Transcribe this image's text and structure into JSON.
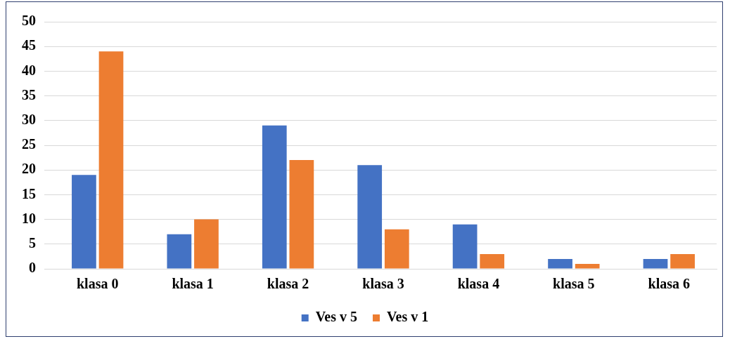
{
  "chart_data": {
    "type": "bar",
    "categories": [
      "klasa 0",
      "klasa 1",
      "klasa 2",
      "klasa 3",
      "klasa 4",
      "klasa 5",
      "klasa 6"
    ],
    "series": [
      {
        "name": "Ves v 5",
        "color": "#4472c4",
        "values": [
          19,
          7,
          29,
          21,
          9,
          2,
          2
        ]
      },
      {
        "name": "Ves v 1",
        "color": "#ed7d31",
        "values": [
          44,
          10,
          22,
          8,
          3,
          1,
          3
        ]
      }
    ],
    "ylim": [
      0,
      50
    ],
    "yticks": [
      0,
      5,
      10,
      15,
      20,
      25,
      30,
      35,
      40,
      45,
      50
    ],
    "grid": "y",
    "legend": "bottom"
  }
}
